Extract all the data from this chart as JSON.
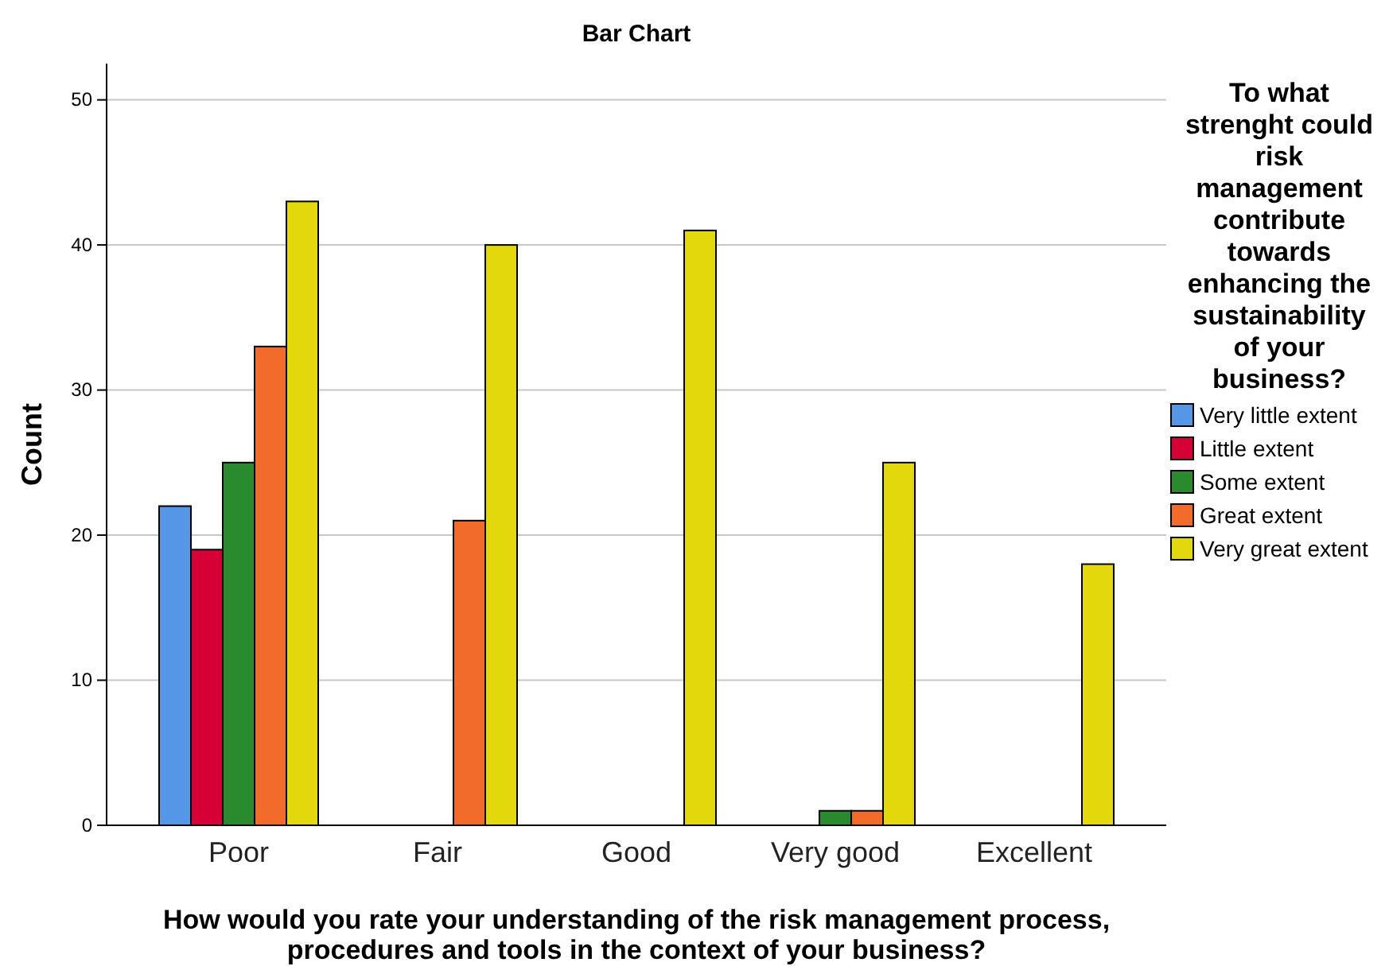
{
  "chart_data": {
    "type": "bar",
    "title": "Bar Chart",
    "xlabel": "How would you rate your understanding of the risk management process, procedures and tools in the context of your business?",
    "ylabel": "Count",
    "legend_title": "To what strenght could risk management contribute towards enhancing the sustainability of your business?",
    "categories": [
      "Poor",
      "Fair",
      "Good",
      "Very good",
      "Excellent"
    ],
    "series": [
      {
        "name": "Very little extent",
        "color": "#5596e6",
        "values": [
          22,
          null,
          null,
          null,
          null
        ]
      },
      {
        "name": "Little extent",
        "color": "#d60036",
        "values": [
          19,
          null,
          null,
          null,
          null
        ]
      },
      {
        "name": "Some extent",
        "color": "#2a8a2e",
        "values": [
          25,
          null,
          null,
          1,
          null
        ]
      },
      {
        "name": "Great extent",
        "color": "#f26b2a",
        "values": [
          33,
          21,
          null,
          1,
          null
        ]
      },
      {
        "name": "Very great extent",
        "color": "#e2d80c",
        "values": [
          43,
          40,
          41,
          25,
          18
        ]
      }
    ],
    "ylim": [
      0,
      52.5
    ],
    "yticks": [
      0,
      10,
      20,
      30,
      40,
      50
    ],
    "grid": "y",
    "legend": "right"
  }
}
